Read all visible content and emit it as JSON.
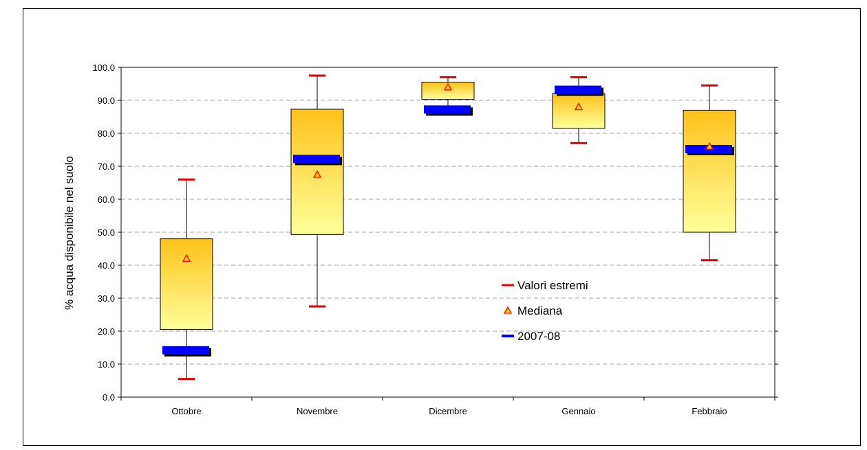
{
  "chart_data": {
    "type": "boxplot",
    "title": "",
    "ylabel": "% acqua disponibile nel suolo",
    "xlabel": "",
    "ylim": [
      0,
      100
    ],
    "ytick_step": 10,
    "ytick_format_decimals": 1,
    "grid": "horizontal-dashed",
    "legend_placement": "center-right",
    "categories": [
      "Ottobre",
      "Novembre",
      "Dicembre",
      "Gennaio",
      "Febbraio"
    ],
    "boxes": [
      {
        "min": 5.5,
        "q1": 20.5,
        "q3": 48.0,
        "max": 66.0
      },
      {
        "min": 27.5,
        "q1": 49.3,
        "q3": 87.3,
        "max": 97.5
      },
      {
        "min": 86.0,
        "q1": 90.3,
        "q3": 95.5,
        "max": 97.0
      },
      {
        "min": 77.0,
        "q1": 81.5,
        "q3": 92.0,
        "max": 97.0
      },
      {
        "min": 41.5,
        "q1": 50.0,
        "q3": 87.0,
        "max": 94.5
      }
    ],
    "series": [
      {
        "name": "Valori estremi",
        "marker": "dash",
        "color": "#e00000",
        "values": "boxes.min/max"
      },
      {
        "name": "Mediana",
        "marker": "triangle",
        "color": "#ff0000",
        "fill": "#ffd200",
        "values": [
          42.0,
          67.5,
          94.0,
          88.0,
          76.0
        ]
      },
      {
        "name": "2007-08",
        "marker": "bar",
        "color": "#0000ff",
        "values": [
          14.0,
          72.0,
          87.0,
          93.0,
          75.0
        ]
      }
    ],
    "colors": {
      "box_top": "#ffc21a",
      "box_bottom": "#ffff9a",
      "whisker": "#000000",
      "extreme": "#e00000",
      "median_stroke": "#ff0000",
      "current_year": "#0000ff",
      "grid": "#a0a0a0"
    }
  }
}
